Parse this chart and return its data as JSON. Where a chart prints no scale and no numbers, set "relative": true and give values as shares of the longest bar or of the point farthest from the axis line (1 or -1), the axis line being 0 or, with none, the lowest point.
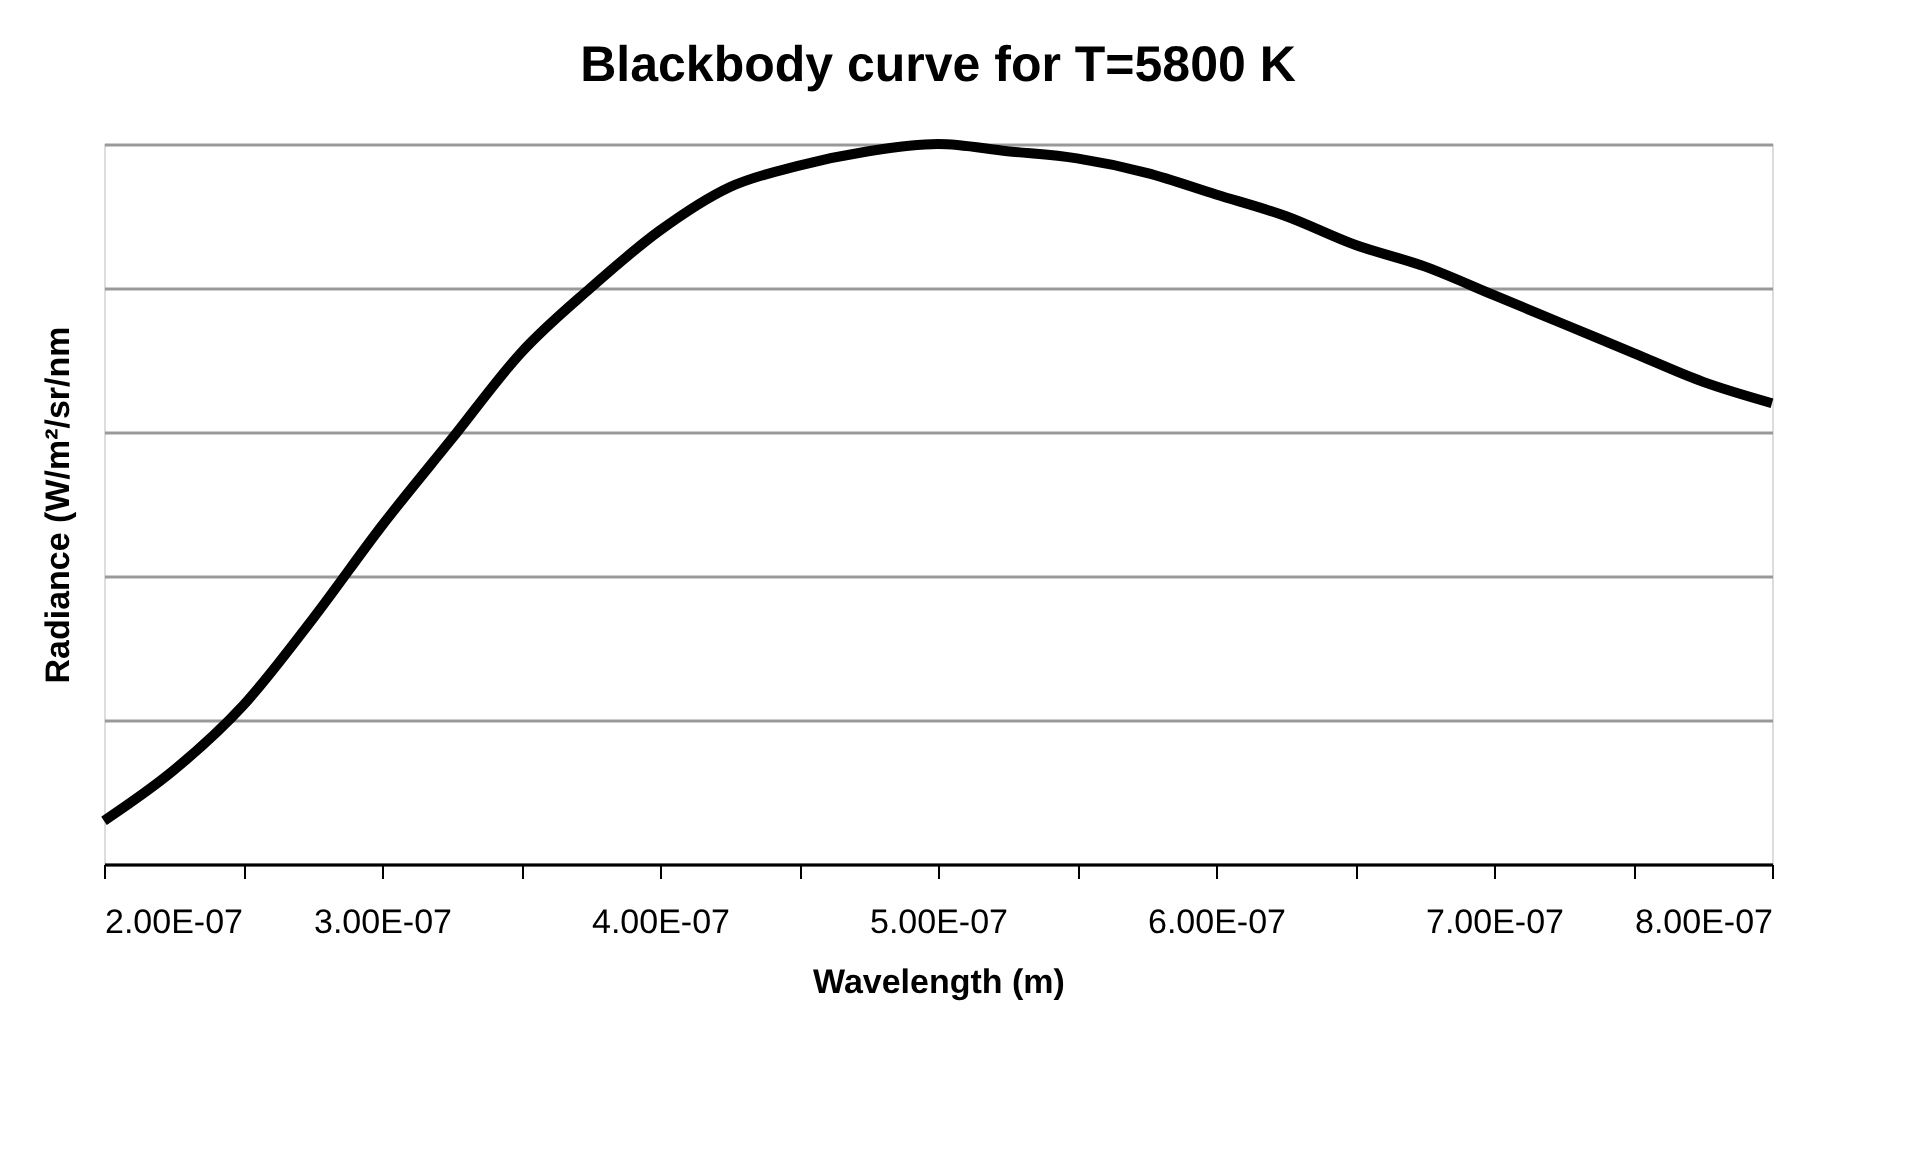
{
  "chart_data": {
    "type": "line",
    "title": "Blackbody curve for T=5800 K",
    "xlabel": "Wavelength (m)",
    "ylabel": "Radiance (W/m²/sr/nm",
    "relative": true,
    "grid": "y",
    "marker": "none",
    "line_style": "solid",
    "xlim": [
      2e-07,
      8e-07
    ],
    "xticks": [
      {
        "value": 2e-07,
        "label": "2.00E-07"
      },
      {
        "value": 2.5e-07,
        "label": null
      },
      {
        "value": 3e-07,
        "label": "3.00E-07"
      },
      {
        "value": 3.5e-07,
        "label": null
      },
      {
        "value": 4e-07,
        "label": "4.00E-07"
      },
      {
        "value": 4.5e-07,
        "label": null
      },
      {
        "value": 5e-07,
        "label": "5.00E-07"
      },
      {
        "value": 5.5e-07,
        "label": null
      },
      {
        "value": 6e-07,
        "label": "6.00E-07"
      },
      {
        "value": 6.5e-07,
        "label": null
      },
      {
        "value": 7e-07,
        "label": "7.00E-07"
      },
      {
        "value": 7.5e-07,
        "label": null
      },
      {
        "value": 8e-07,
        "label": "8.00E-07"
      }
    ],
    "x": [
      2e-07,
      2.25e-07,
      2.5e-07,
      2.75e-07,
      3e-07,
      3.25e-07,
      3.5e-07,
      3.75e-07,
      4e-07,
      4.25e-07,
      4.5e-07,
      4.75e-07,
      5e-07,
      5.25e-07,
      5.5e-07,
      5.75e-07,
      6e-07,
      6.25e-07,
      6.5e-07,
      6.75e-07,
      7e-07,
      7.25e-07,
      7.5e-07,
      7.75e-07,
      8e-07
    ],
    "series": [
      {
        "color": "#000000",
        "values": [
          0.06,
          0.13,
          0.22,
          0.34,
          0.47,
          0.59,
          0.71,
          0.8,
          0.88,
          0.94,
          0.97,
          0.99,
          1.0,
          0.99,
          0.98,
          0.96,
          0.93,
          0.9,
          0.86,
          0.83,
          0.79,
          0.75,
          0.71,
          0.67,
          0.64
        ]
      }
    ]
  }
}
